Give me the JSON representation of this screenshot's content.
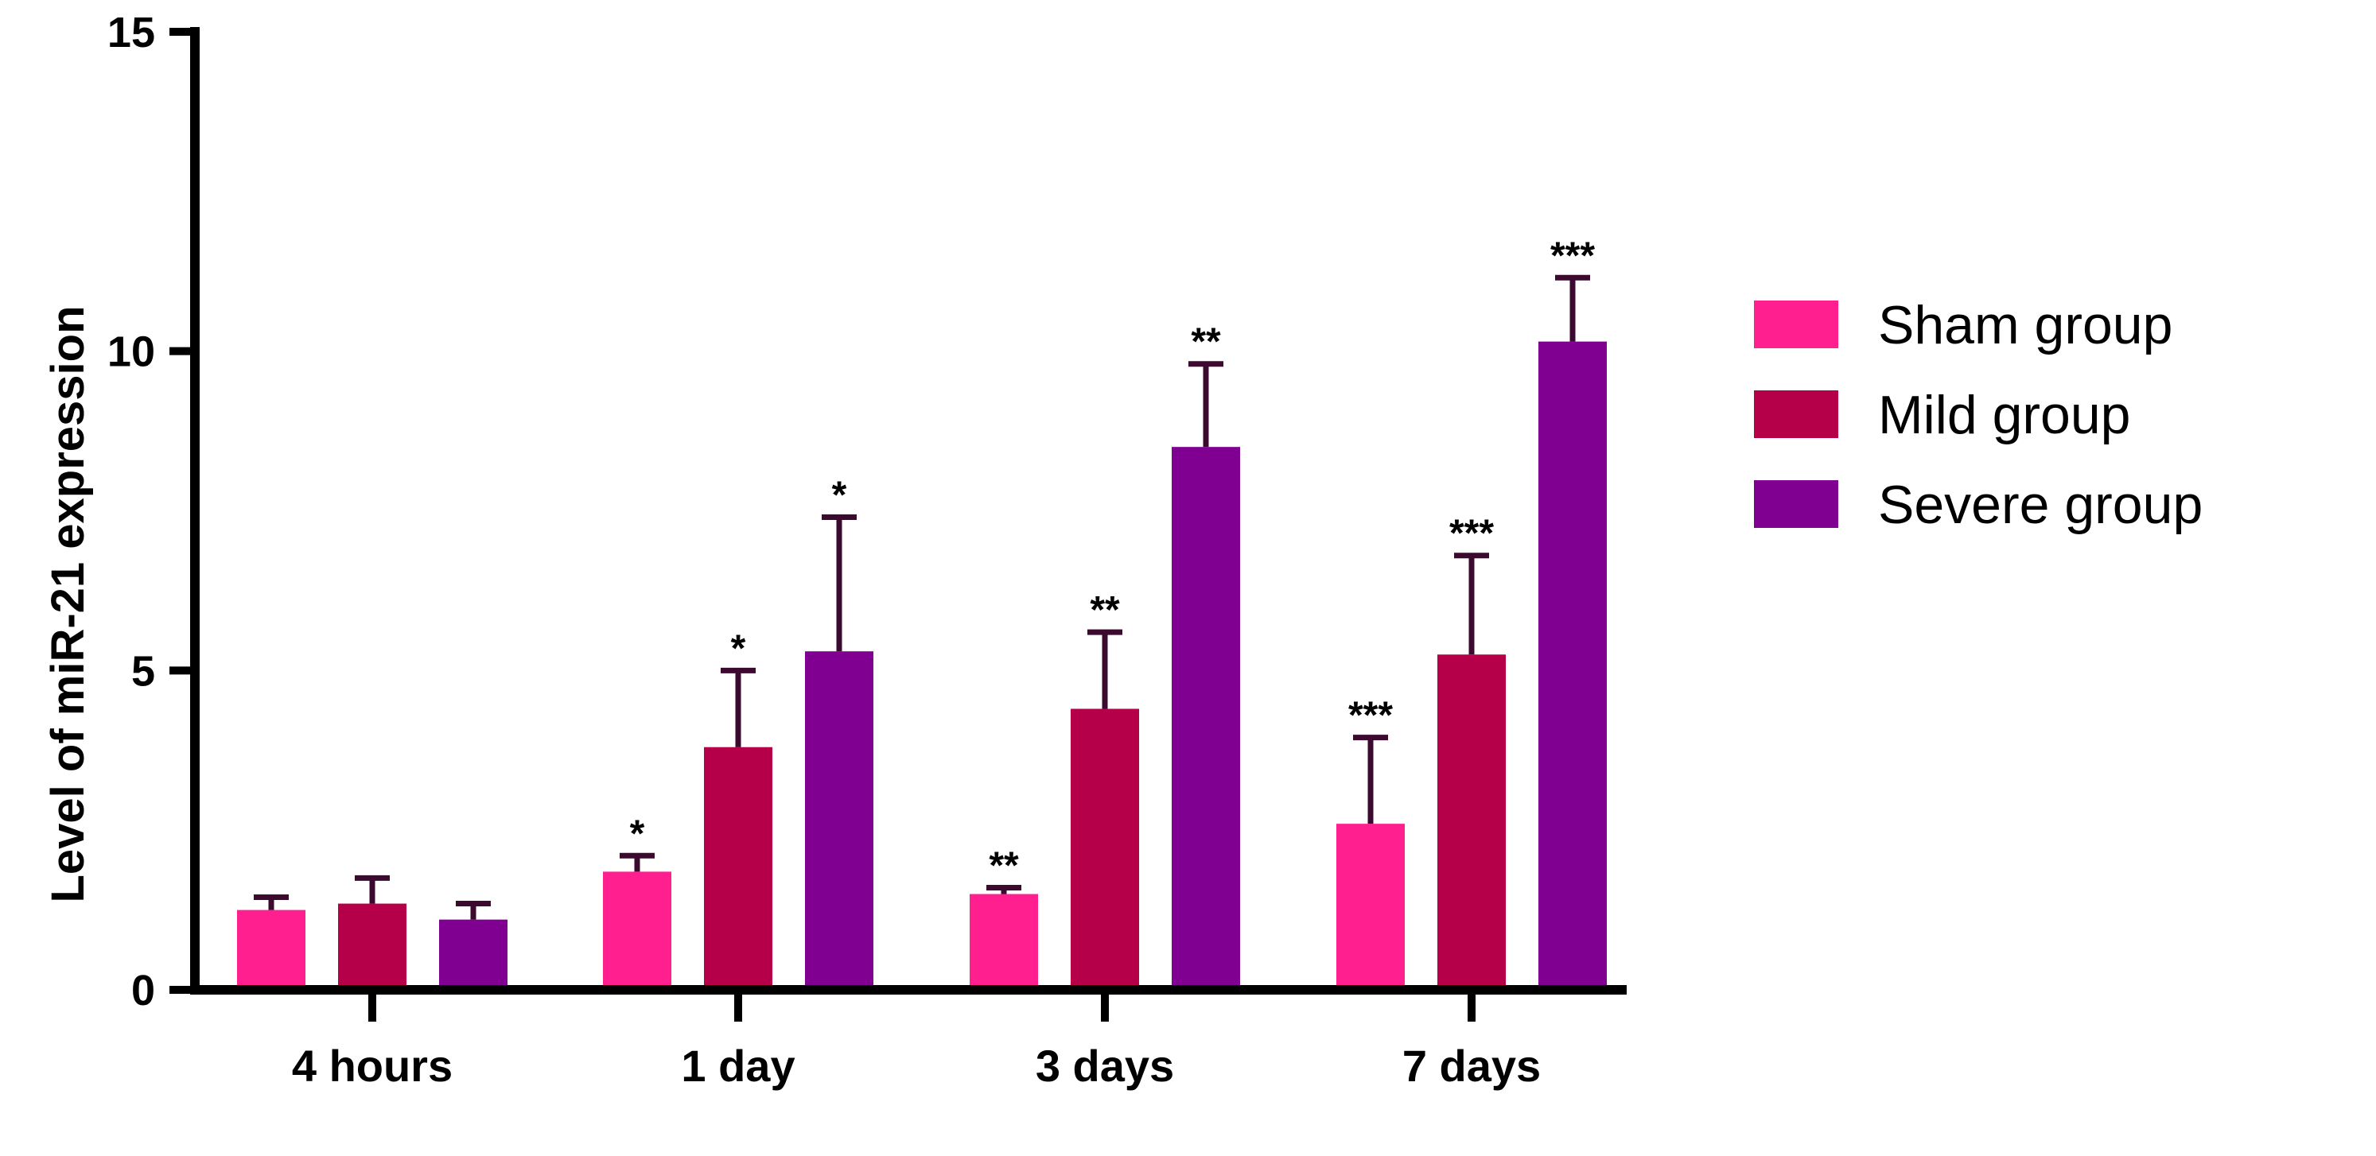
{
  "chart_data": {
    "type": "bar",
    "title": "",
    "xlabel": "",
    "ylabel": "Level of miR-21 expression",
    "ylim": [
      0,
      15
    ],
    "yticks": [
      0,
      5,
      10,
      15
    ],
    "grid": false,
    "legend_position": "right",
    "categories": [
      "4 hours",
      "1 day",
      "3 days",
      "7 days"
    ],
    "series": [
      {
        "name": "Sham group",
        "color": "#ff1f8f",
        "values": [
          1.25,
          1.85,
          1.5,
          2.6
        ],
        "error": [
          0.2,
          0.25,
          0.1,
          1.35
        ],
        "significance": [
          "",
          "*",
          "**",
          "***"
        ]
      },
      {
        "name": "Mild group",
        "color": "#b50049",
        "values": [
          1.35,
          3.8,
          4.4,
          5.25
        ],
        "error": [
          0.4,
          1.2,
          1.2,
          1.55
        ],
        "significance": [
          "",
          "*",
          "**",
          "***"
        ]
      },
      {
        "name": "Severe group",
        "color": "#7f0091",
        "values": [
          1.1,
          5.3,
          8.5,
          10.15
        ],
        "error": [
          0.25,
          2.1,
          1.3,
          1.0
        ],
        "significance": [
          "",
          "*",
          "**",
          "***"
        ]
      }
    ]
  }
}
